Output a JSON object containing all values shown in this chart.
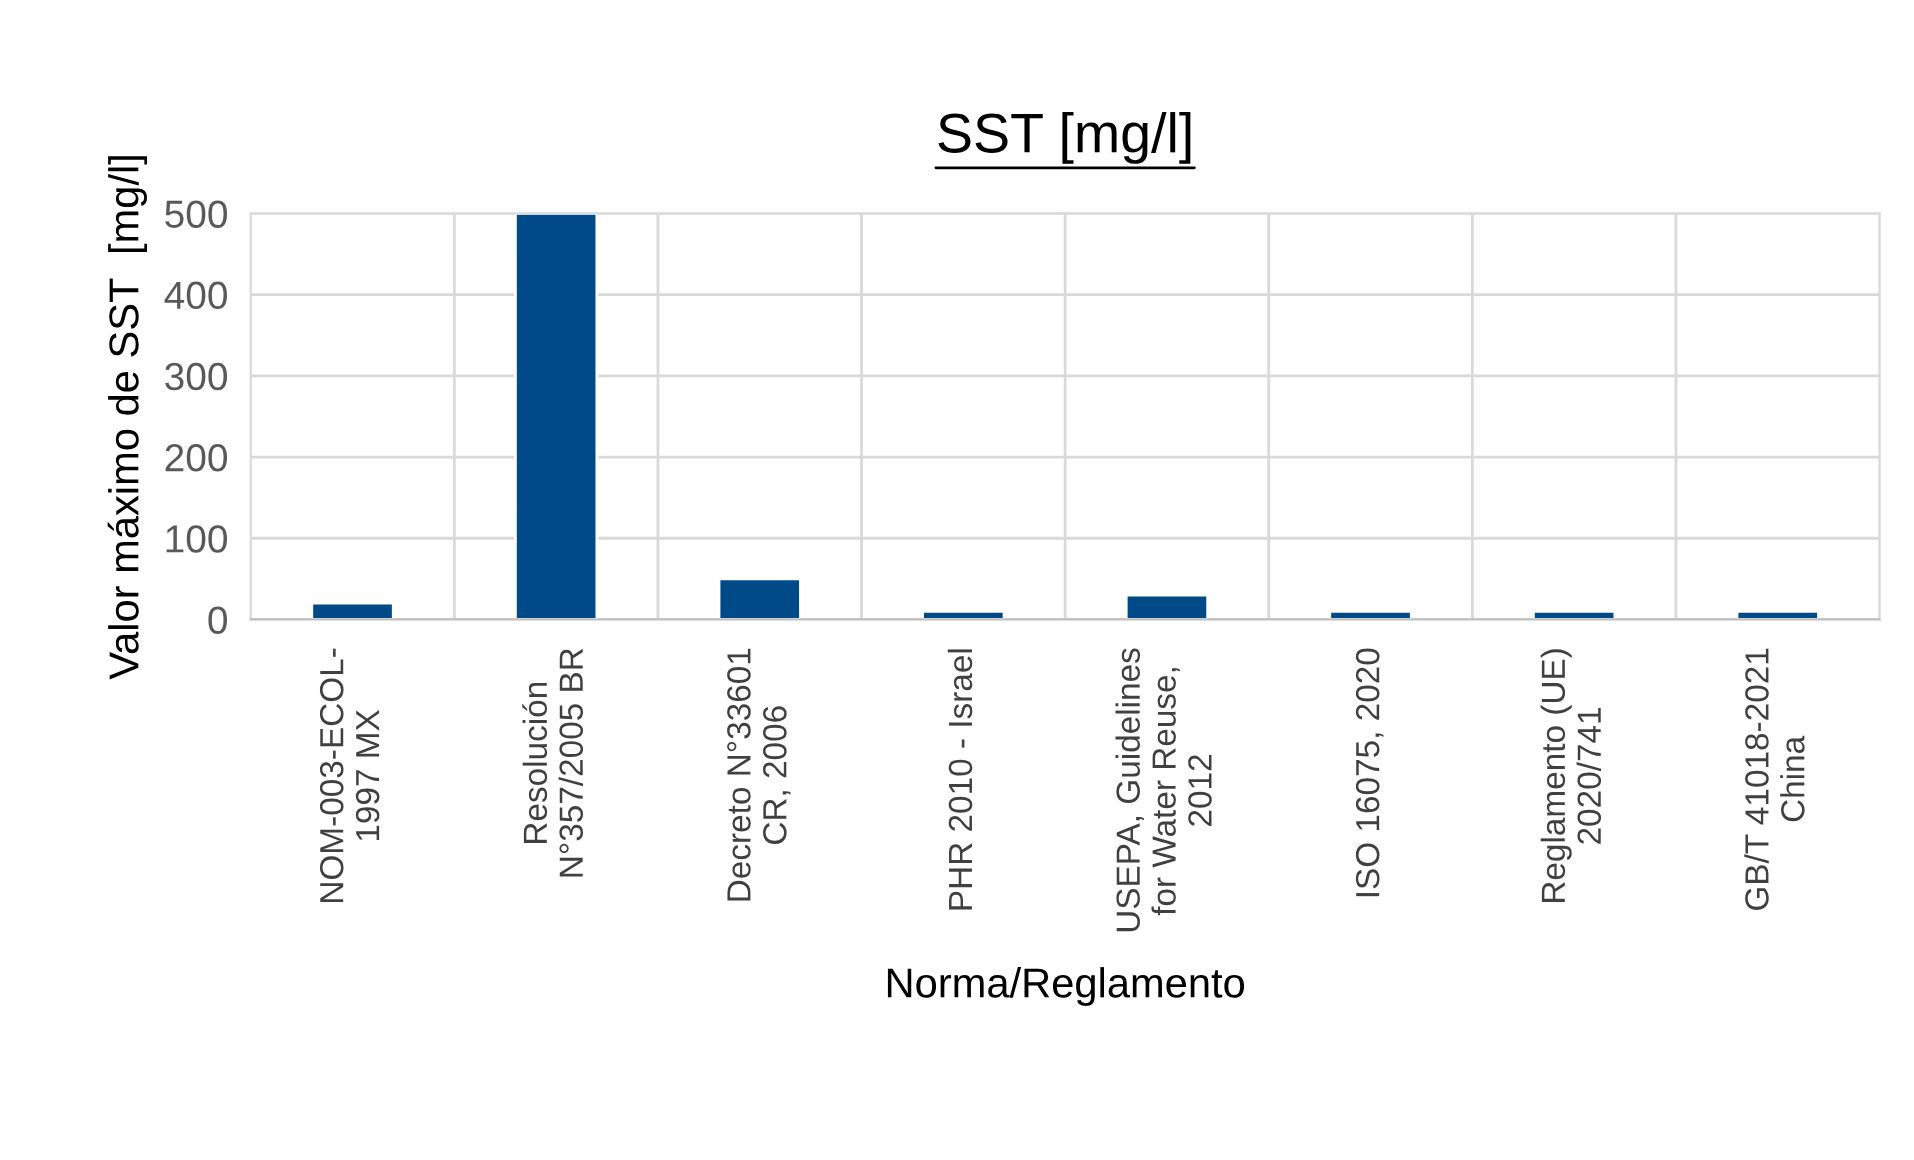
{
  "chart_data": {
    "type": "bar",
    "title": "SST [mg/l]",
    "xlabel": "Norma/Reglamento",
    "ylabel": "Valor máximo de SST  [mg/l]",
    "categories": [
      "NOM-003-ECOL-\n1997 MX",
      "Resolución\nN°357/2005 BR",
      "Decreto N°33601\nCR, 2006",
      "PHR 2010 - Israel",
      "USEPA, Guidelines\nfor Water Reuse,\n2012",
      "ISO 16075, 2020",
      "Reglamento (UE)\n2020/741",
      "GB/T 41018-2021\nChina"
    ],
    "values": [
      20,
      500,
      50,
      10,
      30,
      10,
      10,
      10
    ],
    "color": "#004a87",
    "ylim": [
      0,
      500
    ],
    "yticks": [
      0,
      100,
      200,
      300,
      400,
      500
    ],
    "grid": true,
    "legend": false
  }
}
